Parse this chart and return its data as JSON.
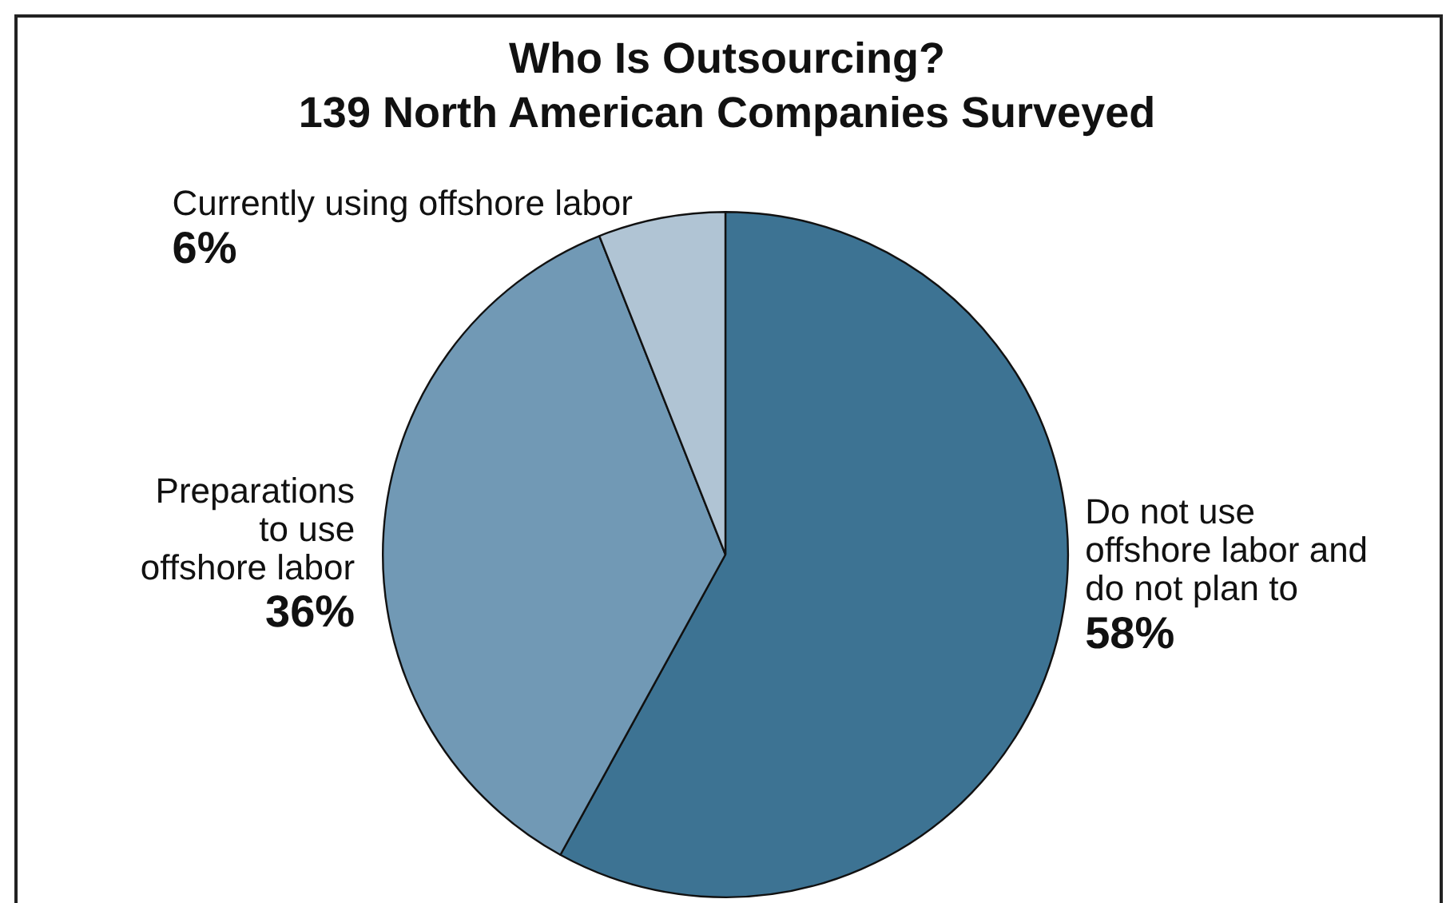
{
  "chart_data": {
    "type": "pie",
    "title": "Who Is Outsourcing?",
    "subtitle": "139 North American Companies Surveyed",
    "categories": [
      "Do not use offshore labor and do not plan to",
      "Preparations to use offshore labor",
      "Currently using offshore labor"
    ],
    "values": [
      58,
      36,
      6
    ],
    "colors": [
      "#3d7393",
      "#7199b5",
      "#b0c4d4"
    ],
    "value_labels": [
      "58%",
      "36%",
      "6%"
    ],
    "legend": false
  }
}
